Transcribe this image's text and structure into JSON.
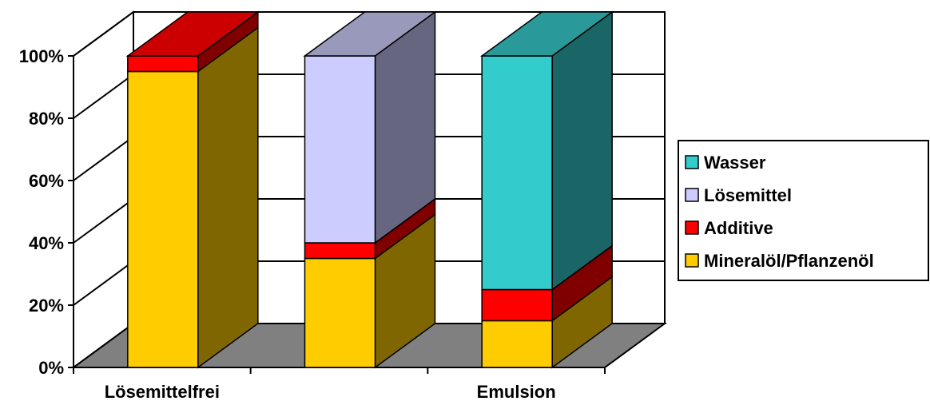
{
  "chart_data": {
    "type": "bar",
    "stacked": true,
    "normalized_percent": true,
    "three_d": true,
    "categories": [
      "Lösemittelfrei",
      "",
      "Emulsion"
    ],
    "series": [
      {
        "name": "Mineralöl/Pflanzenöl",
        "values": [
          95,
          35,
          15
        ],
        "front_color": "#ffcc00",
        "side_color": "#806600",
        "top_color": "#e6b800"
      },
      {
        "name": "Additive",
        "values": [
          5,
          5,
          10
        ],
        "front_color": "#ff0000",
        "side_color": "#800000",
        "top_color": "#cc0000"
      },
      {
        "name": "Lösemittel",
        "values": [
          0,
          60,
          0
        ],
        "front_color": "#ccccff",
        "side_color": "#666680",
        "top_color": "#9999bb"
      },
      {
        "name": "Wasser",
        "values": [
          0,
          0,
          75
        ],
        "front_color": "#33cccc",
        "side_color": "#1a6666",
        "top_color": "#2a9999"
      }
    ],
    "y_ticks": [
      "0%",
      "20%",
      "40%",
      "60%",
      "80%",
      "100%"
    ],
    "ylim": [
      0,
      100
    ],
    "grid": true,
    "legend_position": "right",
    "legend_order": [
      "Wasser",
      "Lösemittel",
      "Additive",
      "Mineralöl/Pflanzenöl"
    ],
    "wall_color": "#ffffff",
    "floor_color": "#808080"
  }
}
